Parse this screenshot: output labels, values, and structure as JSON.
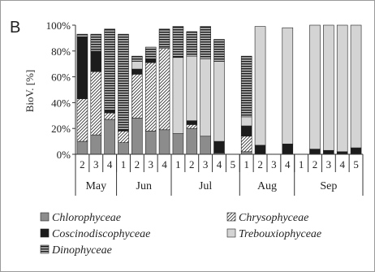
{
  "panel_label": "B",
  "colors": {
    "Chlorophyceae": "#8c8c8c",
    "Chrysophyceae": "hatch",
    "Coscinodiscophyceae": "#1c1c1c",
    "Trebouxiophyceae": "#d4d4d4",
    "Dinophyceae": "stripes"
  },
  "chart_data": {
    "type": "bar",
    "stacked": true,
    "ylabel": "BioV. [%]",
    "ylim": [
      0,
      100
    ],
    "yticks": [
      "0%",
      "20%",
      "40%",
      "60%",
      "80%",
      "100%"
    ],
    "groups": [
      {
        "name": "May",
        "weeks": [
          "2",
          "3",
          "4"
        ]
      },
      {
        "name": "Jun",
        "weeks": [
          "1",
          "2",
          "3",
          "4"
        ]
      },
      {
        "name": "Jul",
        "weeks": [
          "1",
          "2",
          "3",
          "4",
          "5"
        ]
      },
      {
        "name": "Aug",
        "weeks": [
          "1",
          "2",
          "3",
          "4"
        ]
      },
      {
        "name": "Sep",
        "weeks": [
          "1",
          "2",
          "3",
          "4",
          "5"
        ]
      }
    ],
    "series": [
      {
        "name": "Chlorophyceae",
        "values": [
          10,
          15,
          27,
          9,
          28,
          18,
          19,
          16,
          20,
          14,
          1,
          0,
          2,
          0,
          0,
          0,
          0,
          0,
          0,
          0,
          0
        ]
      },
      {
        "name": "Chrysophyceae",
        "values": [
          33,
          49,
          5,
          9,
          34,
          53,
          63,
          0,
          3,
          0,
          0,
          0,
          12,
          0,
          0,
          0,
          0,
          0,
          0,
          0,
          0
        ]
      },
      {
        "name": "Coscinodiscophyceae",
        "values": [
          48,
          16,
          2,
          1,
          4,
          3,
          0,
          0,
          3,
          0,
          9,
          0,
          8,
          7,
          0,
          8,
          0,
          4,
          3,
          2,
          5
        ]
      },
      {
        "name": "Trebouxiophyceae",
        "values": [
          0,
          0,
          0,
          0,
          6,
          0,
          0,
          59,
          50,
          60,
          62,
          0,
          7,
          92,
          0,
          90,
          0,
          96,
          97,
          98,
          95
        ]
      },
      {
        "name": "Dinophyceae",
        "values": [
          2,
          13,
          63,
          74,
          4,
          9,
          15,
          24,
          19,
          25,
          17,
          0,
          47,
          0,
          0,
          0,
          0,
          0,
          0,
          0,
          0
        ]
      }
    ],
    "legend": {
      "position": "bottom",
      "columns": 2
    }
  }
}
